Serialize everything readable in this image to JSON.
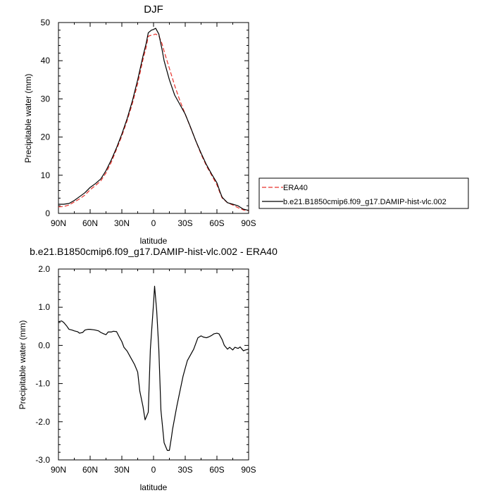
{
  "chart_data": [
    {
      "type": "line",
      "title": "DJF",
      "xlabel": "latitude",
      "ylabel": "Precipitable water (mm)",
      "xlim": [
        90,
        -90
      ],
      "ylim": [
        0,
        50
      ],
      "x_ticks": [
        90,
        60,
        30,
        0,
        -30,
        -60,
        -90
      ],
      "x_tick_labels": [
        "90N",
        "60N",
        "30N",
        "0",
        "30S",
        "60S",
        "90S"
      ],
      "y_ticks": [
        0,
        10,
        20,
        30,
        40,
        50
      ],
      "y_tick_labels": [
        "0",
        "10",
        "20",
        "30",
        "40",
        "50"
      ],
      "legend_position": "right",
      "series": [
        {
          "name": "ERA40",
          "color": "#e8302a",
          "dash": true,
          "x": [
            90,
            85,
            80,
            75,
            70,
            65,
            60,
            55,
            50,
            45,
            40,
            35,
            30,
            25,
            20,
            15,
            10,
            7,
            5,
            2,
            0,
            -2,
            -5,
            -8,
            -10,
            -15,
            -20,
            -25,
            -30,
            -35,
            -40,
            -45,
            -50,
            -55,
            -60,
            -63,
            -65,
            -70,
            -75,
            -80,
            -85,
            -90
          ],
          "values": [
            1.7,
            1.8,
            2.2,
            3.0,
            3.8,
            4.8,
            6.2,
            7.3,
            8.5,
            10.6,
            13.4,
            16.8,
            20.3,
            24.3,
            28.8,
            34.0,
            40.3,
            43.5,
            46.4,
            46.7,
            46.8,
            47.0,
            46.5,
            44.5,
            42.5,
            38.0,
            33.5,
            29.5,
            26.0,
            22.5,
            19.0,
            15.5,
            12.5,
            10.0,
            7.5,
            5.3,
            4.0,
            2.8,
            2.2,
            1.5,
            0.9,
            0.7
          ]
        },
        {
          "name": "b.e21.B1850cmip6.f09_g17.DAMIP-hist-vlc.002",
          "color": "#000000",
          "dash": false,
          "x": [
            90,
            85,
            80,
            75,
            70,
            65,
            60,
            55,
            50,
            45,
            40,
            35,
            30,
            25,
            20,
            15,
            10,
            7,
            5,
            2,
            0,
            -2,
            -5,
            -8,
            -10,
            -15,
            -20,
            -25,
            -30,
            -35,
            -40,
            -45,
            -50,
            -55,
            -60,
            -63,
            -65,
            -70,
            -75,
            -80,
            -85,
            -90
          ],
          "values": [
            2.4,
            2.4,
            2.6,
            3.4,
            4.4,
            5.4,
            6.8,
            7.8,
            9.0,
            11.2,
            14.0,
            17.2,
            20.8,
            24.8,
            29.5,
            35.0,
            41.2,
            44.5,
            47.3,
            48.0,
            48.2,
            48.5,
            47.0,
            43.0,
            40.0,
            35.0,
            31.0,
            28.5,
            26.0,
            22.6,
            19.0,
            15.8,
            12.8,
            10.3,
            8.0,
            5.6,
            4.2,
            2.8,
            2.4,
            2.0,
            1.1,
            0.8
          ]
        }
      ]
    },
    {
      "type": "line",
      "title": "b.e21.B1850cmip6.f09_g17.DAMIP-hist-vlc.002 - ERA40",
      "xlabel": "latitude",
      "ylabel": "Precipitable water (mm)",
      "xlim": [
        90,
        -90
      ],
      "ylim": [
        -3.0,
        2.0
      ],
      "x_ticks": [
        90,
        60,
        30,
        0,
        -30,
        -60,
        -90
      ],
      "x_tick_labels": [
        "90N",
        "60N",
        "30N",
        "0",
        "30S",
        "60S",
        "90S"
      ],
      "y_ticks": [
        2.0,
        1.0,
        0.0,
        -1.0,
        -2.0,
        -3.0
      ],
      "y_tick_labels": [
        "2.0",
        "1.0",
        "0.0",
        "-1.0",
        "-2.0",
        "-3.0"
      ],
      "series": [
        {
          "color": "#000000",
          "x": [
            90,
            87,
            85,
            82,
            80,
            77,
            75,
            72,
            70,
            67,
            65,
            62,
            60,
            57,
            55,
            52,
            50,
            47,
            45,
            43,
            40,
            38,
            35,
            32,
            30,
            28,
            25,
            22,
            20,
            18,
            15,
            13,
            10,
            8,
            5,
            3,
            2,
            0,
            -1,
            -3,
            -5,
            -7,
            -10,
            -13,
            -15,
            -17,
            -18,
            -20,
            -22,
            -25,
            -28,
            -30,
            -32,
            -35,
            -38,
            -40,
            -42,
            -45,
            -47,
            -50,
            -52,
            -55,
            -57,
            -60,
            -62,
            -65,
            -67,
            -70,
            -72,
            -75,
            -77,
            -80,
            -82,
            -85,
            -87,
            -90
          ],
          "values": [
            0.62,
            0.64,
            0.6,
            0.5,
            0.42,
            0.4,
            0.38,
            0.36,
            0.32,
            0.34,
            0.4,
            0.42,
            0.42,
            0.41,
            0.4,
            0.38,
            0.34,
            0.3,
            0.28,
            0.35,
            0.35,
            0.37,
            0.36,
            0.2,
            0.1,
            -0.05,
            -0.15,
            -0.3,
            -0.4,
            -0.5,
            -0.7,
            -1.2,
            -1.6,
            -1.95,
            -1.75,
            -0.1,
            0.3,
            1.1,
            1.55,
            0.9,
            -0.1,
            -1.7,
            -2.55,
            -2.75,
            -2.75,
            -2.4,
            -2.2,
            -1.9,
            -1.6,
            -1.2,
            -0.8,
            -0.6,
            -0.4,
            -0.25,
            -0.1,
            0.05,
            0.2,
            0.25,
            0.22,
            0.2,
            0.22,
            0.26,
            0.3,
            0.32,
            0.3,
            0.15,
            0.0,
            -0.1,
            -0.05,
            -0.12,
            -0.05,
            -0.08,
            -0.04,
            -0.14,
            -0.12,
            -0.1
          ]
        }
      ]
    }
  ]
}
